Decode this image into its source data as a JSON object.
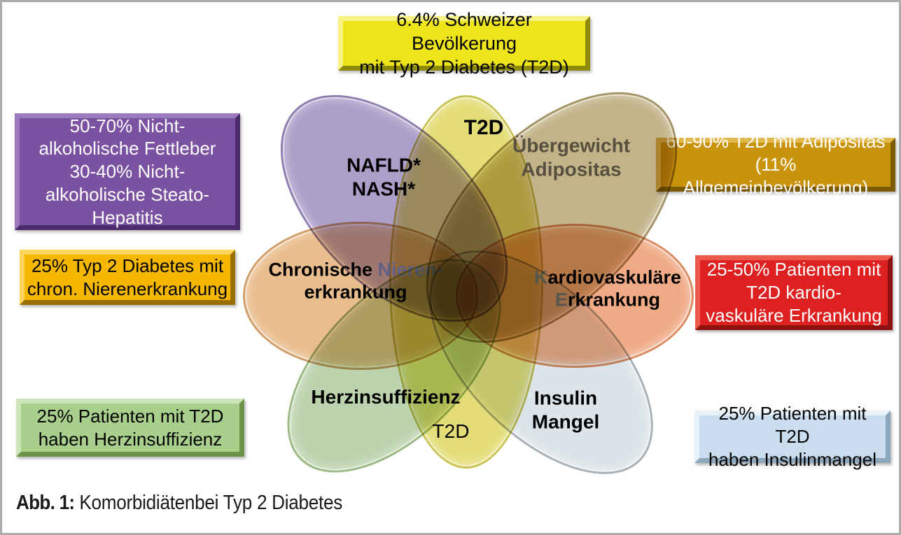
{
  "caption": {
    "prefix": "Abb. 1:",
    "text": " Komorbidiätenbei Typ 2 Diabetes"
  },
  "colors": {
    "page_border": "#ACACAC"
  },
  "callouts": [
    {
      "id": "t2d-prevalence",
      "lines": [
        "6.4% Schweizer Bevölkerung",
        "mit Typ 2 Diabetes (T2D)"
      ],
      "fill": "#EDE419",
      "light": "#F7F283",
      "dark": "#8C8A06",
      "text_color": "#000000"
    },
    {
      "id": "nafld-nash-stats",
      "lines": [
        "50-70% Nicht-",
        "alkoholische Fettleber",
        "30-40% Nicht-",
        "alkoholische Steato-",
        "Hepatitis"
      ],
      "fill": "#7B51A1",
      "light": "#9A79BC",
      "dark": "#4C2C6E",
      "text_color": "#FFFFFF"
    },
    {
      "id": "kidney-stats",
      "lines": [
        "25% Typ 2 Diabetes mit",
        "chron. Nierenerkrankung"
      ],
      "fill": "#F6B700",
      "light": "#FFD65C",
      "dark": "#996F00",
      "text_color": "#000000"
    },
    {
      "id": "heart-failure-stats",
      "lines": [
        "25% Patienten mit T2D",
        "haben Herzinsuffizienz"
      ],
      "fill": "#A9CF8D",
      "light": "#CDE5B8",
      "dark": "#6B9448",
      "text_color": "#000000"
    },
    {
      "id": "obesity-stats",
      "lines": [
        "60-90% T2D mit Adipositas",
        "(11% Allgemeinbevölkerung)"
      ],
      "fill": "#C9930C",
      "light": "#E2B94C",
      "dark": "#7C5A00",
      "text_color": "#FFFFFF"
    },
    {
      "id": "cardiovascular-stats",
      "lines": [
        "25-50% Patienten mit",
        "T2D kardio-",
        "vaskuläre Erkrankung"
      ],
      "fill": "#DE2020",
      "light": "#EE5A4A",
      "dark": "#8F1212",
      "text_color": "#FFFFFF"
    },
    {
      "id": "insulin-stats",
      "lines": [
        "25% Patienten mit T2D",
        "haben Insulinmangel"
      ],
      "fill": "#CADDEE",
      "light": "#E8F2FA",
      "dark": "#8CA6BC",
      "text_color": "#000000"
    }
  ],
  "venn": {
    "petals": [
      {
        "id": "t2d-core",
        "fill": "#E4DD77",
        "rim": "#C9C254"
      },
      {
        "id": "chronic-kidney-disease",
        "fill": "#E9BD8D",
        "rim": "#D19F6B"
      },
      {
        "id": "cardiovascular-disease",
        "fill": "#F0AB86",
        "rim": "#DB8E65"
      },
      {
        "id": "nafld-nash",
        "fill": "#AC9FC9",
        "rim": "#8E7FAE"
      },
      {
        "id": "overweight-obesity",
        "fill": "#C3B389",
        "rim": "#A49468"
      },
      {
        "id": "heart-failure",
        "fill": "#BDD3AE",
        "rim": "#9BB985"
      },
      {
        "id": "insulin-deficiency",
        "fill": "#DCE4E9",
        "rim": "#A8B0B6"
      }
    ],
    "labels": [
      {
        "id": "t2d-top",
        "color": "#000000",
        "lines": [
          [
            "T2D"
          ]
        ]
      },
      {
        "id": "chronic-kidney-disease",
        "color": "#000000",
        "lines": [
          [
            {
              "t": "Chronische ",
              "c": "#000000"
            },
            {
              "t": "Nieren-",
              "c": "#8E98A9"
            }
          ],
          [
            "erkrankung"
          ]
        ]
      },
      {
        "id": "cardiovascular-disease",
        "color": "#000000",
        "lines": [
          [
            {
              "t": "K",
              "c": "#7D8A9C"
            },
            {
              "t": "ardiovaskuläre"
            }
          ],
          [
            {
              "t": "E",
              "c": "#7D8A9C"
            },
            {
              "t": "rkrankung"
            }
          ]
        ]
      },
      {
        "id": "nafld-nash",
        "color": "#000000",
        "lines": [
          [
            "NAFLD*"
          ],
          [
            "NASH*"
          ]
        ]
      },
      {
        "id": "overweight-obesity",
        "color": "#57503F",
        "lines": [
          [
            "Übergewicht"
          ],
          [
            "Adipositas"
          ]
        ]
      },
      {
        "id": "heart-failure",
        "color": "#000000",
        "lines": [
          [
            "Herzinsuffizienz"
          ]
        ]
      },
      {
        "id": "insulin-deficiency",
        "color": "#000000",
        "lines": [
          [
            "Insulin"
          ],
          [
            "Mangel"
          ]
        ]
      },
      {
        "id": "t2d-bottom",
        "color": "#000000",
        "lines": [
          [
            "T2D"
          ]
        ]
      }
    ]
  }
}
